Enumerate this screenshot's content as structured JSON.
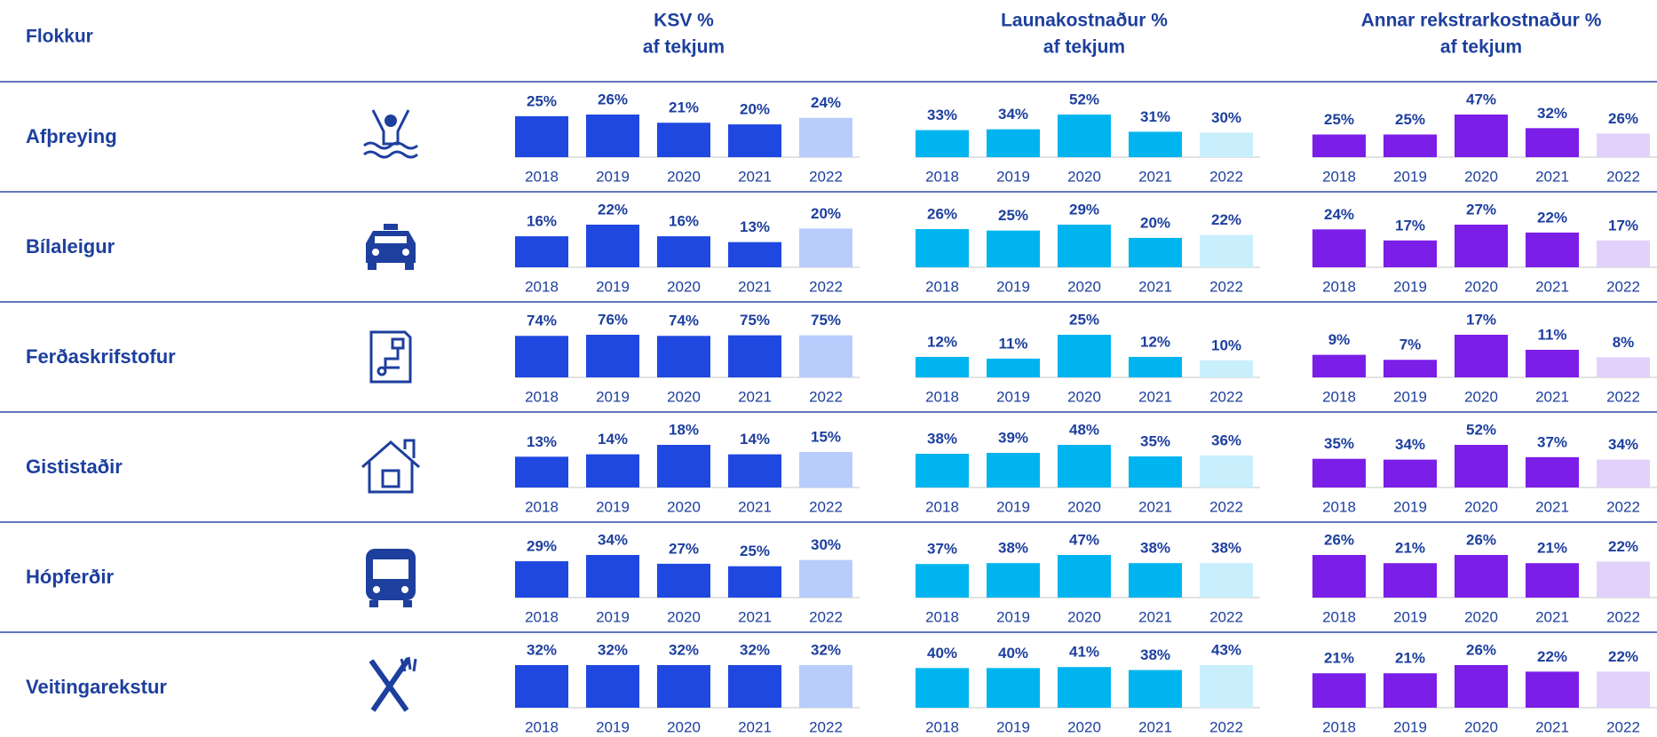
{
  "chart_data": {
    "type": "small-multiples-bar",
    "category_header": "Flokkur",
    "years": [
      "2018",
      "2019",
      "2020",
      "2021",
      "2022"
    ],
    "metrics": [
      {
        "title_lines": [
          "KSV %",
          "af tekjum"
        ],
        "color": "#1f48e0",
        "last_color": "#b9cdfc"
      },
      {
        "title_lines": [
          "Launakostnaður %",
          "af tekjum"
        ],
        "color": "#00b5ef",
        "last_color": "#c9effd"
      },
      {
        "title_lines": [
          "Annar rekstrarkostnaður %",
          "af tekjum"
        ],
        "color": "#7a1ee8",
        "last_color": "#e1d1fb"
      }
    ],
    "rows": [
      {
        "name": "Afþreying",
        "values": [
          [
            25,
            26,
            21,
            20,
            24
          ],
          [
            33,
            34,
            52,
            31,
            30
          ],
          [
            25,
            25,
            47,
            32,
            26
          ]
        ],
        "value_labels": [
          [
            "25%",
            "26%",
            "21%",
            "20%",
            "24%"
          ],
          [
            "33%",
            "34%",
            "52%",
            "31%",
            "30%"
          ],
          [
            "25%",
            "25%",
            "47%",
            "32%",
            "26%"
          ]
        ]
      },
      {
        "name": "Bílaleigur",
        "values": [
          [
            16,
            22,
            16,
            13,
            20
          ],
          [
            26,
            25,
            29,
            20,
            22
          ],
          [
            24,
            17,
            27,
            22,
            17
          ]
        ],
        "value_labels": [
          [
            "16%",
            "22%",
            "16%",
            "13%",
            "20%"
          ],
          [
            "26%",
            "25%",
            "29%",
            "20%",
            "22%"
          ],
          [
            "24%",
            "17%",
            "27%",
            "22%",
            "17%"
          ]
        ]
      },
      {
        "name": "Ferðaskrifstofur",
        "values": [
          [
            74,
            76,
            74,
            75,
            75
          ],
          [
            12,
            11,
            25,
            12,
            10
          ],
          [
            9,
            7,
            17,
            11,
            8
          ]
        ],
        "value_labels": [
          [
            "74%",
            "76%",
            "74%",
            "75%",
            "75%"
          ],
          [
            "12%",
            "11%",
            "25%",
            "12%",
            "10%"
          ],
          [
            "9%",
            "7%",
            "17%",
            "11%",
            "8%"
          ]
        ]
      },
      {
        "name": "Gististaðir",
        "values": [
          [
            13,
            14,
            18,
            14,
            15
          ],
          [
            38,
            39,
            48,
            35,
            36
          ],
          [
            35,
            34,
            52,
            37,
            34
          ]
        ],
        "value_labels": [
          [
            "13%",
            "14%",
            "18%",
            "14%",
            "15%"
          ],
          [
            "38%",
            "39%",
            "48%",
            "35%",
            "36%"
          ],
          [
            "35%",
            "34%",
            "52%",
            "37%",
            "34%"
          ]
        ]
      },
      {
        "name": "Hópferðir",
        "values": [
          [
            29,
            34,
            27,
            25,
            30
          ],
          [
            37,
            38,
            47,
            38,
            38
          ],
          [
            26,
            21,
            26,
            21,
            22
          ]
        ],
        "value_labels": [
          [
            "29%",
            "34%",
            "27%",
            "25%",
            "30%"
          ],
          [
            "37%",
            "38%",
            "47%",
            "38%",
            "38%"
          ],
          [
            "26%",
            "21%",
            "26%",
            "21%",
            "22%"
          ]
        ]
      },
      {
        "name": "Veitingarekstur",
        "values": [
          [
            32,
            32,
            32,
            32,
            32
          ],
          [
            40,
            40,
            41,
            38,
            43
          ],
          [
            21,
            21,
            26,
            22,
            22
          ]
        ],
        "value_labels": [
          [
            "32%",
            "32%",
            "32%",
            "32%",
            "32%"
          ],
          [
            "40%",
            "40%",
            "41%",
            "38%",
            "43%"
          ],
          [
            "21%",
            "21%",
            "26%",
            "22%",
            "22%"
          ]
        ]
      }
    ]
  }
}
